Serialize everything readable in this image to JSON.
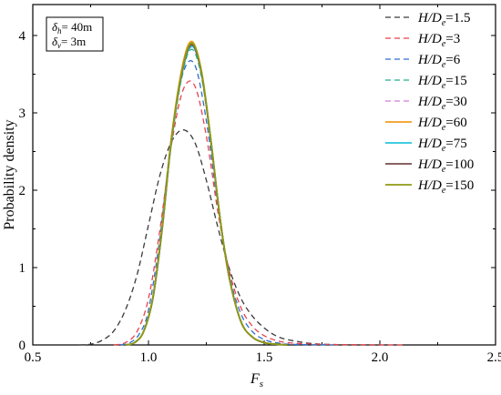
{
  "chart_data": {
    "type": "line",
    "xlabel_main": "F",
    "xlabel_sub": "s",
    "ylabel": "Probability density",
    "xlim": [
      0.5,
      2.5
    ],
    "ylim": [
      0,
      4.4
    ],
    "xticks": [
      "0.5",
      "1.0",
      "1.5",
      "2.0",
      "2.5"
    ],
    "yticks": [
      "0",
      "1",
      "2",
      "3",
      "4"
    ],
    "xtick_values": [
      0.5,
      1.0,
      1.5,
      2.0,
      2.5
    ],
    "ytick_values": [
      0,
      1,
      2,
      3,
      4
    ],
    "grid": false,
    "legend_position": "top-right",
    "annotation": {
      "line1": {
        "var": "δ",
        "sub": "h",
        "rest": "= 40m"
      },
      "line2": {
        "var": "δ",
        "sub": "v",
        "rest": "= 3m"
      }
    },
    "legend_label_parts": {
      "prefix": "H/D",
      "sub": "e"
    },
    "series": [
      {
        "name": "H/De=1.5",
        "suffix": "=1.5",
        "color": "#3a3a3a",
        "dash": true,
        "x": [
          0.7,
          0.75,
          0.8,
          0.85,
          0.9,
          0.95,
          1.0,
          1.05,
          1.1,
          1.15,
          1.2,
          1.25,
          1.3,
          1.35,
          1.4,
          1.45,
          1.5,
          1.55,
          1.6,
          1.7,
          1.8,
          1.9,
          2.0
        ],
        "y": [
          0.0,
          0.01,
          0.06,
          0.18,
          0.45,
          0.9,
          1.55,
          2.2,
          2.63,
          2.78,
          2.62,
          2.13,
          1.52,
          0.98,
          0.6,
          0.37,
          0.22,
          0.12,
          0.07,
          0.02,
          0.005,
          0.0,
          0.0
        ]
      },
      {
        "name": "H/De=3",
        "suffix": "=3",
        "color": "#e8424b",
        "dash": true,
        "x": [
          0.85,
          0.9,
          0.95,
          1.0,
          1.05,
          1.1,
          1.15,
          1.2,
          1.25,
          1.3,
          1.35,
          1.4,
          1.45,
          1.5,
          1.55,
          1.6,
          1.7,
          1.8,
          1.9,
          2.0,
          2.1
        ],
        "y": [
          0.0,
          0.03,
          0.17,
          0.6,
          1.5,
          2.6,
          3.3,
          3.35,
          2.7,
          1.72,
          0.95,
          0.48,
          0.24,
          0.12,
          0.06,
          0.03,
          0.012,
          0.005,
          0.002,
          0.0,
          0.0
        ]
      },
      {
        "name": "H/De=6",
        "suffix": "=6",
        "color": "#2f6fcc",
        "dash": true,
        "x": [
          0.88,
          0.92,
          0.96,
          1.0,
          1.05,
          1.1,
          1.15,
          1.2,
          1.25,
          1.3,
          1.35,
          1.4,
          1.45,
          1.5,
          1.55,
          1.6,
          1.7,
          1.8
        ],
        "y": [
          0.0,
          0.03,
          0.14,
          0.45,
          1.4,
          2.7,
          3.52,
          3.62,
          2.9,
          1.8,
          0.9,
          0.4,
          0.17,
          0.07,
          0.03,
          0.01,
          0.003,
          0.0
        ]
      },
      {
        "name": "H/De=15",
        "suffix": "=15",
        "color": "#1db08a",
        "dash": true,
        "x": [
          0.9,
          0.94,
          0.98,
          1.02,
          1.06,
          1.1,
          1.15,
          1.19,
          1.23,
          1.27,
          1.31,
          1.35,
          1.4,
          1.45,
          1.5,
          1.55,
          1.6
        ],
        "y": [
          0.0,
          0.03,
          0.18,
          0.62,
          1.5,
          2.62,
          3.55,
          3.82,
          3.45,
          2.6,
          1.6,
          0.85,
          0.3,
          0.1,
          0.03,
          0.01,
          0.0
        ]
      },
      {
        "name": "H/De=30",
        "suffix": "=30",
        "color": "#d47ad9",
        "dash": true,
        "x": [
          0.9,
          0.94,
          0.98,
          1.02,
          1.06,
          1.1,
          1.15,
          1.19,
          1.23,
          1.27,
          1.31,
          1.35,
          1.4,
          1.45,
          1.5,
          1.55,
          1.6
        ],
        "y": [
          0.0,
          0.03,
          0.18,
          0.62,
          1.52,
          2.65,
          3.58,
          3.85,
          3.48,
          2.62,
          1.62,
          0.86,
          0.3,
          0.1,
          0.03,
          0.01,
          0.0
        ]
      },
      {
        "name": "H/De=60",
        "suffix": "=60",
        "color": "#f39c1f",
        "dash": false,
        "x": [
          0.9,
          0.94,
          0.98,
          1.02,
          1.06,
          1.1,
          1.15,
          1.19,
          1.23,
          1.27,
          1.31,
          1.35,
          1.4,
          1.45,
          1.5,
          1.55,
          1.6
        ],
        "y": [
          0.0,
          0.03,
          0.18,
          0.63,
          1.55,
          2.7,
          3.65,
          3.92,
          3.52,
          2.64,
          1.62,
          0.86,
          0.3,
          0.1,
          0.03,
          0.01,
          0.0
        ]
      },
      {
        "name": "H/De=75",
        "suffix": "=75",
        "color": "#25c6dd",
        "dash": false,
        "x": [
          0.9,
          0.94,
          0.98,
          1.02,
          1.06,
          1.1,
          1.15,
          1.19,
          1.23,
          1.27,
          1.31,
          1.35,
          1.4,
          1.45,
          1.5,
          1.55,
          1.6
        ],
        "y": [
          0.0,
          0.03,
          0.18,
          0.62,
          1.52,
          2.66,
          3.58,
          3.86,
          3.5,
          2.63,
          1.62,
          0.86,
          0.3,
          0.1,
          0.03,
          0.01,
          0.0
        ]
      },
      {
        "name": "H/De=100",
        "suffix": "=100",
        "color": "#7a4b4b",
        "dash": false,
        "x": [
          0.9,
          0.94,
          0.98,
          1.02,
          1.06,
          1.1,
          1.15,
          1.19,
          1.23,
          1.27,
          1.31,
          1.35,
          1.4,
          1.45,
          1.5,
          1.55,
          1.6
        ],
        "y": [
          0.0,
          0.03,
          0.18,
          0.62,
          1.53,
          2.68,
          3.6,
          3.88,
          3.5,
          2.63,
          1.62,
          0.86,
          0.3,
          0.1,
          0.03,
          0.01,
          0.0
        ]
      },
      {
        "name": "H/De=150",
        "suffix": "=150",
        "color": "#8f9a12",
        "dash": false,
        "x": [
          0.9,
          0.94,
          0.98,
          1.02,
          1.06,
          1.1,
          1.15,
          1.19,
          1.23,
          1.27,
          1.31,
          1.35,
          1.4,
          1.45,
          1.5,
          1.55,
          1.6
        ],
        "y": [
          0.0,
          0.03,
          0.18,
          0.63,
          1.54,
          2.68,
          3.62,
          3.9,
          3.52,
          2.64,
          1.62,
          0.86,
          0.3,
          0.1,
          0.03,
          0.01,
          0.0
        ]
      }
    ]
  }
}
